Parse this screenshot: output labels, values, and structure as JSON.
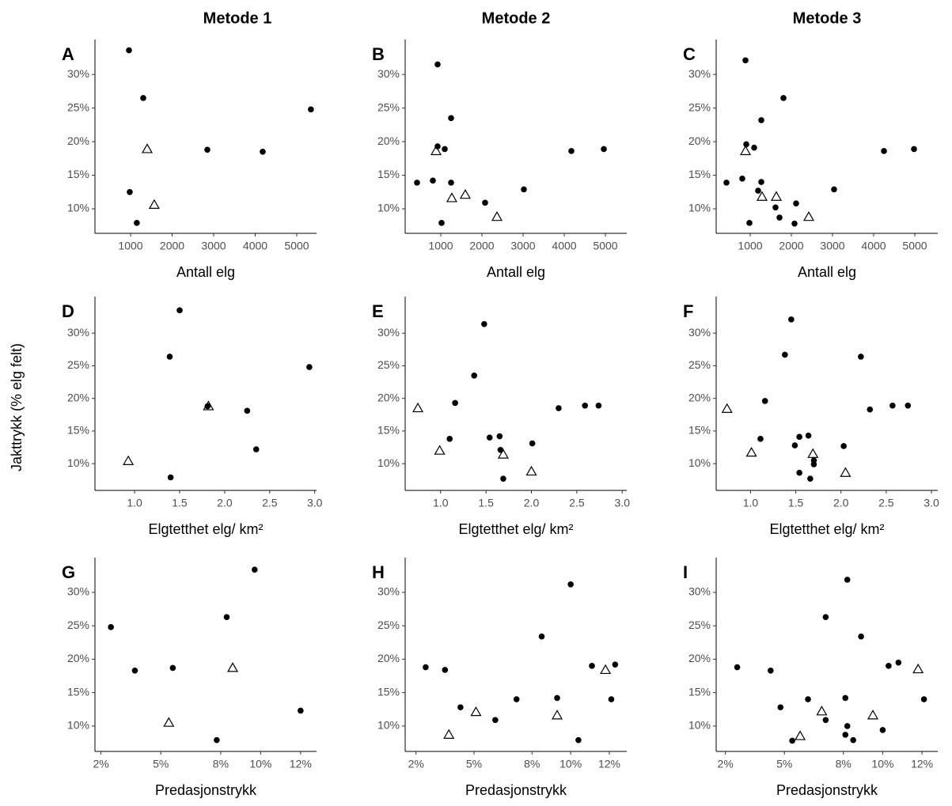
{
  "column_titles": [
    "Metode 1",
    "Metode 2",
    "Metode 3"
  ],
  "y_label": "Jakttrykk (% elg felt)",
  "chart_data": [
    {
      "type": "scatter",
      "panel": "A",
      "xlabel": "Antall elg",
      "xlim": [
        143,
        5476
      ],
      "ylim": [
        6.35,
        35.2
      ],
      "xticks": [
        1000,
        2000,
        3000,
        4000,
        5000
      ],
      "yticks": [
        {
          "value": 10,
          "label": "10%"
        },
        {
          "value": 15,
          "label": "15%"
        },
        {
          "value": 20,
          "label": "20%"
        },
        {
          "value": 25,
          "label": "25%"
        },
        {
          "value": 30,
          "label": "30%"
        }
      ],
      "series": [
        {
          "marker": "circle",
          "color": "#000000",
          "x": [
            962,
            1305,
            2848,
            4180,
            5340,
            980,
            1150
          ],
          "values": [
            33.6,
            26.5,
            18.8,
            18.5,
            24.8,
            12.5,
            7.9
          ]
        },
        {
          "marker": "triangle",
          "color": "#000000",
          "x": [
            1400,
            1570
          ],
          "values": [
            18.9,
            10.6
          ]
        }
      ]
    },
    {
      "type": "scatter",
      "panel": "B",
      "xlabel": "Antall elg",
      "xlim": [
        135,
        5519
      ],
      "ylim": [
        6.35,
        35.2
      ],
      "xticks": [
        1000,
        2000,
        3000,
        4000,
        5000
      ],
      "yticks": [
        {
          "value": 10,
          "label": "10%"
        },
        {
          "value": 15,
          "label": "15%"
        },
        {
          "value": 20,
          "label": "20%"
        },
        {
          "value": 25,
          "label": "25%"
        },
        {
          "value": 30,
          "label": "30%"
        }
      ],
      "series": [
        {
          "marker": "circle",
          "color": "#000000",
          "x": [
            423,
            808,
            923,
            923,
            1096,
            1250,
            1250,
            1019,
            2077,
            3019,
            4173,
            4962
          ],
          "values": [
            13.9,
            14.2,
            31.5,
            19.3,
            18.9,
            23.5,
            13.9,
            7.9,
            10.9,
            12.9,
            18.6,
            18.9
          ]
        },
        {
          "marker": "triangle",
          "color": "#000000",
          "x": [
            885,
            1269,
            1596,
            2365
          ],
          "values": [
            18.6,
            11.6,
            12.1,
            8.8
          ]
        }
      ]
    },
    {
      "type": "scatter",
      "panel": "C",
      "xlabel": "Antall elg",
      "xlim": [
        173,
        5558
      ],
      "ylim": [
        6.35,
        35.2
      ],
      "xticks": [
        1000,
        2000,
        3000,
        4000,
        5000
      ],
      "yticks": [
        {
          "value": 10,
          "label": "10%"
        },
        {
          "value": 15,
          "label": "15%"
        },
        {
          "value": 20,
          "label": "20%"
        },
        {
          "value": 25,
          "label": "25%"
        },
        {
          "value": 30,
          "label": "30%"
        }
      ],
      "series": [
        {
          "marker": "circle",
          "color": "#000000",
          "x": [
            423,
            808,
            885,
            904,
            1096,
            1269,
            1269,
            1192,
            1615,
            1712,
            1808,
            2077,
            2115,
            3038,
            4250,
            4981,
            981
          ],
          "values": [
            13.9,
            14.5,
            32.1,
            19.6,
            19.1,
            23.2,
            14,
            12.7,
            10.2,
            8.7,
            26.5,
            7.8,
            10.8,
            12.9,
            18.6,
            18.9,
            7.9
          ]
        },
        {
          "marker": "triangle",
          "color": "#000000",
          "x": [
            885,
            1288,
            1635,
            2423
          ],
          "values": [
            18.6,
            11.8,
            11.8,
            8.8
          ]
        }
      ]
    },
    {
      "type": "scatter",
      "panel": "D",
      "xlabel": "Elgtetthet elg/ km²",
      "xlim": [
        0.56,
        3.02
      ],
      "ylim": [
        5.9,
        35.6
      ],
      "xticks": [
        {
          "value": 1,
          "label": "1.0"
        },
        1.5,
        {
          "value": 2,
          "label": "2.0"
        },
        2.5,
        {
          "value": 3,
          "label": "3.0"
        }
      ],
      "yticks": [
        {
          "value": 10,
          "label": "10%"
        },
        {
          "value": 15,
          "label": "15%"
        },
        {
          "value": 20,
          "label": "20%"
        },
        {
          "value": 25,
          "label": "25%"
        },
        {
          "value": 30,
          "label": "30%"
        }
      ],
      "series": [
        {
          "marker": "circle",
          "color": "#000000",
          "x": [
            1.5,
            1.39,
            2.25,
            2.35,
            2.94,
            1.81,
            1.4
          ],
          "values": [
            33.5,
            26.4,
            18.1,
            12.2,
            24.8,
            18.8,
            7.9
          ]
        },
        {
          "marker": "triangle",
          "color": "#000000",
          "x": [
            0.93,
            1.82
          ],
          "values": [
            10.4,
            18.8
          ]
        }
      ]
    },
    {
      "type": "scatter",
      "panel": "E",
      "xlabel": "Elgtetthet elg/ km²",
      "xlim": [
        0.61,
        3.05
      ],
      "ylim": [
        5.9,
        35.6
      ],
      "xticks": [
        {
          "value": 1,
          "label": "1.0"
        },
        1.5,
        {
          "value": 2,
          "label": "2.0"
        },
        2.5,
        {
          "value": 3,
          "label": "3.0"
        }
      ],
      "yticks": [
        {
          "value": 10,
          "label": "10%"
        },
        {
          "value": 15,
          "label": "15%"
        },
        {
          "value": 20,
          "label": "20%"
        },
        {
          "value": 25,
          "label": "25%"
        },
        {
          "value": 30,
          "label": "30%"
        }
      ],
      "series": [
        {
          "marker": "circle",
          "color": "#000000",
          "x": [
            1.48,
            1.37,
            1.16,
            1.1,
            1.54,
            1.65,
            1.66,
            1.69,
            2.01,
            2.3,
            2.59,
            2.74
          ],
          "values": [
            31.4,
            23.5,
            19.3,
            13.8,
            14,
            14.2,
            12.1,
            7.7,
            13.1,
            18.5,
            18.9,
            18.9
          ]
        },
        {
          "marker": "triangle",
          "color": "#000000",
          "x": [
            0.75,
            0.99,
            1.69,
            2
          ],
          "values": [
            18.5,
            12,
            11.4,
            8.8
          ]
        }
      ]
    },
    {
      "type": "scatter",
      "panel": "F",
      "xlabel": "Elgtetthet elg/ km²",
      "xlim": [
        0.62,
        3.07
      ],
      "ylim": [
        5.9,
        35.6
      ],
      "xticks": [
        {
          "value": 1,
          "label": "1.0"
        },
        1.5,
        {
          "value": 2,
          "label": "2.0"
        },
        2.5,
        {
          "value": 3,
          "label": "3.0"
        }
      ],
      "yticks": [
        {
          "value": 10,
          "label": "10%"
        },
        {
          "value": 15,
          "label": "15%"
        },
        {
          "value": 20,
          "label": "20%"
        },
        {
          "value": 25,
          "label": "25%"
        },
        {
          "value": 30,
          "label": "30%"
        }
      ],
      "series": [
        {
          "marker": "circle",
          "color": "#000000",
          "x": [
            1.45,
            1.38,
            1.16,
            1.11,
            2.22,
            2.32,
            2.57,
            2.74,
            1.49,
            1.54,
            1.64,
            1.7,
            1.7,
            1.54,
            1.66,
            2.03
          ],
          "values": [
            32.1,
            26.7,
            19.6,
            13.8,
            26.4,
            18.3,
            18.9,
            18.9,
            12.8,
            14.1,
            14.3,
            10.5,
            9.9,
            8.6,
            7.7,
            12.7
          ]
        },
        {
          "marker": "triangle",
          "color": "#000000",
          "x": [
            0.74,
            1.01,
            1.69,
            2.05
          ],
          "values": [
            18.4,
            11.7,
            11.5,
            8.6
          ]
        }
      ]
    },
    {
      "type": "scatter",
      "panel": "G",
      "xlabel": "Predasjonstrykk",
      "xlim": [
        1.7,
        12.8
      ],
      "ylim": [
        6.2,
        35.2
      ],
      "xticks": [
        {
          "value": 2,
          "label": "2%"
        },
        {
          "value": 5,
          "label": "5%"
        },
        {
          "value": 8,
          "label": "8%"
        },
        {
          "value": 10,
          "label": "10%"
        },
        {
          "value": 12,
          "label": "12%"
        }
      ],
      "yticks": [
        {
          "value": 10,
          "label": "10%"
        },
        {
          "value": 15,
          "label": "15%"
        },
        {
          "value": 20,
          "label": "20%"
        },
        {
          "value": 25,
          "label": "25%"
        },
        {
          "value": 30,
          "label": "30%"
        }
      ],
      "series": [
        {
          "marker": "circle",
          "color": "#000000",
          "x": [
            2.5,
            3.7,
            5.6,
            8.3,
            9.7,
            7.8,
            12
          ],
          "values": [
            24.8,
            18.3,
            18.7,
            26.3,
            33.4,
            7.9,
            12.3
          ]
        },
        {
          "marker": "triangle",
          "color": "#000000",
          "x": [
            8.6,
            5.4
          ],
          "values": [
            18.7,
            10.5
          ]
        }
      ]
    },
    {
      "type": "scatter",
      "panel": "H",
      "xlabel": "Predasjonstrykk",
      "xlim": [
        1.44,
        12.9
      ],
      "ylim": [
        6.2,
        35.2
      ],
      "xticks": [
        {
          "value": 2,
          "label": "2%"
        },
        {
          "value": 5,
          "label": "5%"
        },
        {
          "value": 8,
          "label": "8%"
        },
        {
          "value": 10,
          "label": "10%"
        },
        {
          "value": 12,
          "label": "12%"
        }
      ],
      "yticks": [
        {
          "value": 10,
          "label": "10%"
        },
        {
          "value": 15,
          "label": "15%"
        },
        {
          "value": 20,
          "label": "20%"
        },
        {
          "value": 25,
          "label": "25%"
        },
        {
          "value": 30,
          "label": "30%"
        }
      ],
      "series": [
        {
          "marker": "circle",
          "color": "#000000",
          "x": [
            2.5,
            3.5,
            4.3,
            6.1,
            7.2,
            8.5,
            9.3,
            10,
            10.4,
            11.1,
            12.1,
            12.3
          ],
          "values": [
            18.8,
            18.4,
            12.8,
            10.9,
            14,
            23.4,
            14.2,
            31.2,
            7.9,
            19,
            14,
            19.2
          ]
        },
        {
          "marker": "triangle",
          "color": "#000000",
          "x": [
            3.7,
            5.1,
            9.3,
            11.8
          ],
          "values": [
            8.7,
            12.1,
            11.6,
            18.4
          ]
        }
      ]
    },
    {
      "type": "scatter",
      "panel": "I",
      "xlabel": "Predasjonstrykk",
      "xlim": [
        1.53,
        12.8
      ],
      "ylim": [
        6.2,
        35.2
      ],
      "xticks": [
        {
          "value": 2,
          "label": "2%"
        },
        {
          "value": 5,
          "label": "5%"
        },
        {
          "value": 8,
          "label": "8%"
        },
        {
          "value": 10,
          "label": "10%"
        },
        {
          "value": 12,
          "label": "12%"
        }
      ],
      "yticks": [
        {
          "value": 10,
          "label": "10%"
        },
        {
          "value": 15,
          "label": "15%"
        },
        {
          "value": 20,
          "label": "20%"
        },
        {
          "value": 25,
          "label": "25%"
        },
        {
          "value": 30,
          "label": "30%"
        }
      ],
      "series": [
        {
          "marker": "circle",
          "color": "#000000",
          "x": [
            2.6,
            4.3,
            4.8,
            6.2,
            7.1,
            7.1,
            8.1,
            8.2,
            8.2,
            8.1,
            8.5,
            8.9,
            10,
            10.3,
            10.8,
            12.1,
            5.4
          ],
          "values": [
            18.8,
            18.3,
            12.8,
            14,
            26.3,
            10.9,
            14.2,
            31.9,
            10,
            8.7,
            7.9,
            23.4,
            9.4,
            19,
            19.5,
            14,
            7.8
          ]
        },
        {
          "marker": "triangle",
          "color": "#000000",
          "x": [
            5.8,
            6.9,
            9.5,
            11.8
          ],
          "values": [
            8.5,
            12.2,
            11.6,
            18.5
          ]
        }
      ]
    }
  ]
}
